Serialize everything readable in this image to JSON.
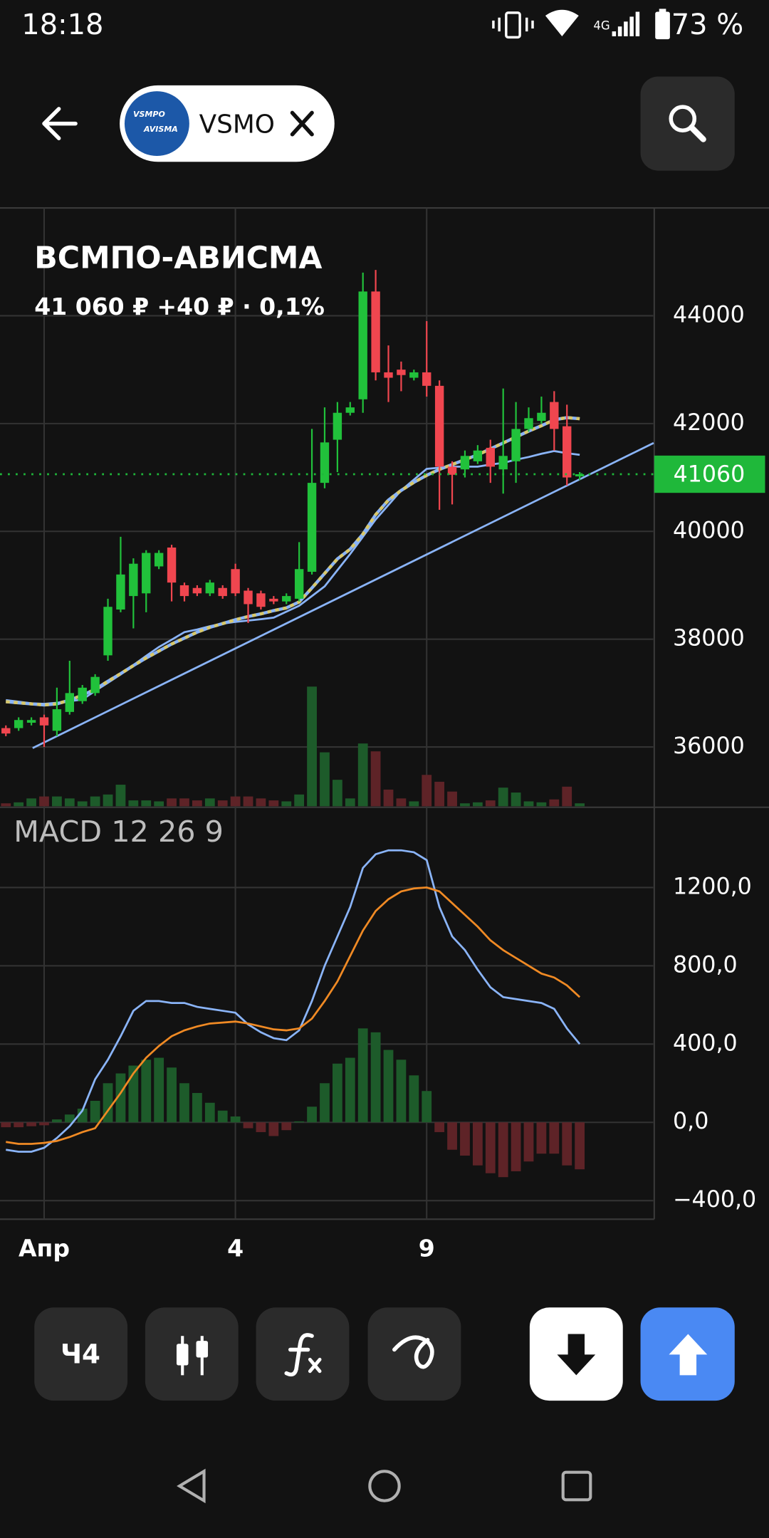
{
  "status_bar": {
    "time": "18:18",
    "network": "4G",
    "battery": "73 %"
  },
  "header": {
    "logo_text": [
      "VSMPO",
      "AVISMA"
    ],
    "ticker": "VSMO"
  },
  "instrument": {
    "name": "ВСМПО-АВИСМА",
    "price": "41 060 ₽",
    "change": "+40 ₽ · 0,1%"
  },
  "toolbar": {
    "interval": "Ч4"
  },
  "chart_data": [
    {
      "type": "candlestick",
      "categories": [
        null,
        null,
        null,
        "Апр",
        null,
        null,
        null,
        null,
        null,
        null,
        null,
        null,
        null,
        null,
        null,
        null,
        null,
        null,
        "4",
        null,
        null,
        null,
        null,
        null,
        null,
        null,
        null,
        null,
        null,
        null,
        null,
        null,
        null,
        "9",
        null,
        null,
        null,
        null,
        null,
        null,
        null,
        null,
        null,
        null,
        null,
        null
      ],
      "open": [
        36350,
        36350,
        36450,
        36550,
        36300,
        36650,
        36850,
        37000,
        37700,
        38550,
        38800,
        38850,
        39350,
        39700,
        39000,
        38950,
        38850,
        38950,
        39300,
        38900,
        38850,
        38750,
        38700,
        38750,
        39250,
        40900,
        41700,
        42200,
        42450,
        44450,
        42950,
        43000,
        42850,
        42950,
        42700,
        41200,
        41150,
        41300,
        41550,
        41150,
        41300,
        41900,
        42050,
        42400,
        41950,
        41020
      ],
      "high": [
        36400,
        36550,
        36550,
        36600,
        37100,
        37600,
        37150,
        37350,
        38750,
        39900,
        39500,
        39650,
        39650,
        39750,
        39050,
        39000,
        39100,
        39000,
        39400,
        38950,
        38900,
        38800,
        38850,
        39800,
        41900,
        42300,
        42400,
        42400,
        44800,
        44850,
        43450,
        43150,
        43000,
        43900,
        42800,
        41300,
        41500,
        41600,
        41700,
        42650,
        42400,
        42300,
        42500,
        42600,
        42350,
        41100
      ],
      "low": [
        36200,
        36300,
        36400,
        36000,
        36200,
        36600,
        36800,
        36950,
        37600,
        38500,
        38200,
        38500,
        39300,
        38700,
        38700,
        38800,
        38800,
        38750,
        38800,
        38300,
        38550,
        38650,
        38650,
        38700,
        39200,
        40800,
        41100,
        42150,
        42200,
        42800,
        42400,
        42600,
        42800,
        42500,
        40400,
        40500,
        41000,
        41250,
        40900,
        40700,
        40900,
        41850,
        42000,
        41500,
        40850,
        40950
      ],
      "close": [
        36250,
        36500,
        36500,
        36400,
        36700,
        37000,
        37100,
        37300,
        38600,
        39200,
        39400,
        39600,
        39600,
        39050,
        38800,
        38850,
        39050,
        38800,
        38850,
        38650,
        38600,
        38700,
        38800,
        39300,
        40900,
        41650,
        42200,
        42300,
        44450,
        42950,
        42850,
        42900,
        42950,
        42700,
        41200,
        41050,
        41400,
        41500,
        41200,
        41400,
        41900,
        42100,
        42200,
        41900,
        41000,
        41060
      ],
      "volume": [
        3,
        4,
        8,
        10,
        10,
        8,
        5,
        10,
        12,
        22,
        6,
        6,
        5,
        8,
        8,
        6,
        8,
        6,
        10,
        10,
        8,
        6,
        5,
        12,
        122,
        55,
        27,
        8,
        64,
        56,
        17,
        8,
        5,
        32,
        25,
        15,
        3,
        4,
        6,
        19,
        14,
        5,
        4,
        7,
        20,
        3
      ],
      "up_color": "#21c13b",
      "down_color": "#f0464f",
      "volume_up_color": "#1d5b2a",
      "volume_down_color": "#5e2327",
      "series": [
        {
          "color": "#8ab4f8",
          "values": [
            36870,
            36840,
            36810,
            36800,
            36820,
            36850,
            36880,
            37040,
            37190,
            37345,
            37520,
            37690,
            37855,
            37990,
            38130,
            38180,
            38240,
            38290,
            38320,
            38345,
            38370,
            38400,
            38510,
            38620,
            38800,
            38980,
            39280,
            39580,
            39900,
            40220,
            40490,
            40760,
            40960,
            41160,
            41180,
            41200,
            41200,
            41200,
            41240,
            41270,
            41330,
            41380,
            41440,
            41490,
            41450,
            41420
          ]
        },
        {
          "color": "#d8c86a",
          "dashed": true,
          "values": [
            36840,
            36820,
            36800,
            36780,
            36800,
            36870,
            36960,
            37070,
            37220,
            37360,
            37510,
            37650,
            37780,
            37910,
            38020,
            38130,
            38220,
            38290,
            38360,
            38420,
            38470,
            38530,
            38580,
            38690,
            38950,
            39220,
            39490,
            39670,
            39950,
            40310,
            40580,
            40760,
            40910,
            41040,
            41150,
            41240,
            41330,
            41420,
            41530,
            41640,
            41750,
            41860,
            41960,
            42070,
            42110,
            42090
          ]
        }
      ],
      "trendline": {
        "color": "#8ab4f8",
        "x": [
          2.1,
          50.8
        ],
        "values": [
          35980,
          41640
        ]
      },
      "last": 41060,
      "last_color": "#1fb83a",
      "ylim": [
        34900,
        46000
      ],
      "yticks": [
        36000,
        38000,
        40000,
        42000,
        44000
      ],
      "grid": true
    },
    {
      "type": "macd",
      "title": "MACD 12 26 9",
      "series": [
        {
          "color": "#8ab4f8",
          "values": [
            -140,
            -150,
            -150,
            -130,
            -80,
            -20,
            60,
            220,
            320,
            440,
            570,
            620,
            620,
            610,
            610,
            590,
            580,
            570,
            560,
            500,
            460,
            430,
            420,
            470,
            620,
            800,
            950,
            1100,
            1300,
            1370,
            1390,
            1390,
            1380,
            1340,
            1100,
            950,
            880,
            780,
            690,
            640,
            630,
            620,
            610,
            580,
            480,
            400
          ]
        },
        {
          "color": "#f08a24",
          "values": [
            -100,
            -110,
            -110,
            -105,
            -95,
            -75,
            -50,
            -30,
            60,
            150,
            250,
            330,
            390,
            440,
            470,
            490,
            505,
            510,
            515,
            505,
            490,
            475,
            470,
            480,
            530,
            620,
            720,
            850,
            980,
            1080,
            1140,
            1180,
            1195,
            1200,
            1180,
            1120,
            1060,
            1000,
            930,
            880,
            840,
            800,
            760,
            740,
            700,
            640
          ]
        }
      ],
      "histogram": [
        -25,
        -25,
        -20,
        -15,
        15,
        40,
        70,
        110,
        200,
        250,
        290,
        320,
        330,
        280,
        200,
        150,
        100,
        60,
        30,
        -30,
        -50,
        -70,
        -40,
        5,
        80,
        200,
        300,
        330,
        480,
        460,
        370,
        320,
        240,
        160,
        -50,
        -140,
        -170,
        -220,
        -260,
        -280,
        -250,
        -200,
        -160,
        -160,
        -220,
        -240
      ],
      "up_color": "#1d5b2a",
      "down_color": "#5e2327",
      "ylim": [
        -495,
        1610
      ],
      "yticks": [
        {
          "value": 1200,
          "label": "1200,0"
        },
        {
          "value": 800,
          "label": "800,0"
        },
        {
          "value": 400,
          "label": "400,0"
        },
        {
          "value": 0,
          "label": "0,0"
        },
        {
          "value": -400,
          "label": "−400,0"
        }
      ],
      "grid": true
    }
  ]
}
